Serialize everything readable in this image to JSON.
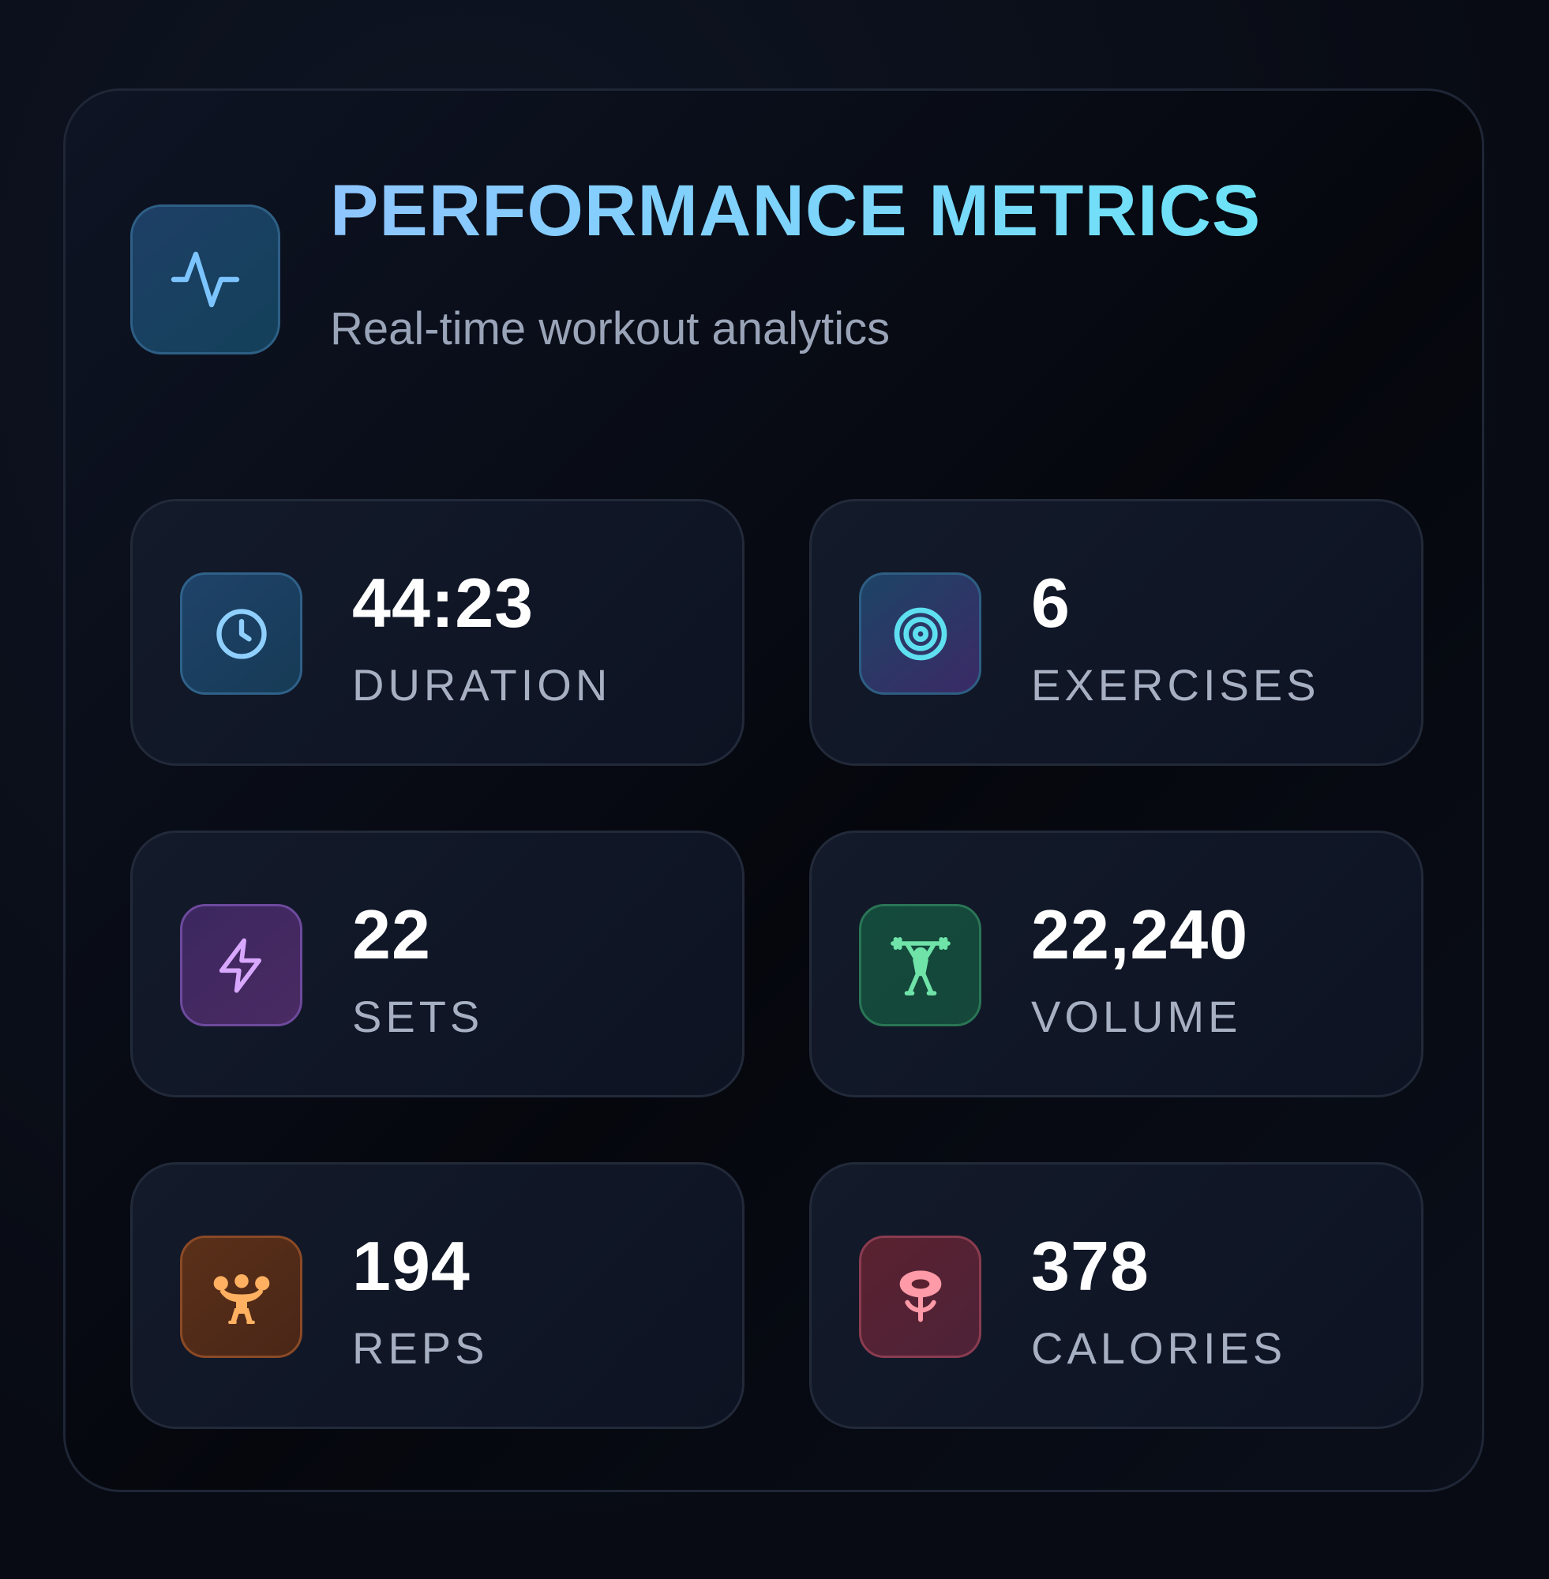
{
  "header": {
    "icon": "activity-pulse-icon",
    "title": "PERFORMANCE METRICS",
    "subtitle": "Real-time workout analytics"
  },
  "metrics": [
    {
      "icon": "clock-icon",
      "value": "44:23",
      "label": "DURATION",
      "accent": "#7cc4ff"
    },
    {
      "icon": "target-icon",
      "value": "6",
      "label": "EXERCISES",
      "accent": "#5ee0f0"
    },
    {
      "icon": "lightning-bolt-icon",
      "value": "22",
      "label": "SETS",
      "accent": "#d8a8ff"
    },
    {
      "icon": "weightlifter-icon",
      "value": "22,240",
      "label": "VOLUME",
      "accent": "#6fe3a8"
    },
    {
      "icon": "flexed-muscle-icon",
      "value": "194",
      "label": "REPS",
      "accent": "#ffb060"
    },
    {
      "icon": "flame-icon",
      "value": "378",
      "label": "CALORIES",
      "accent": "#ff9aa8"
    }
  ]
}
